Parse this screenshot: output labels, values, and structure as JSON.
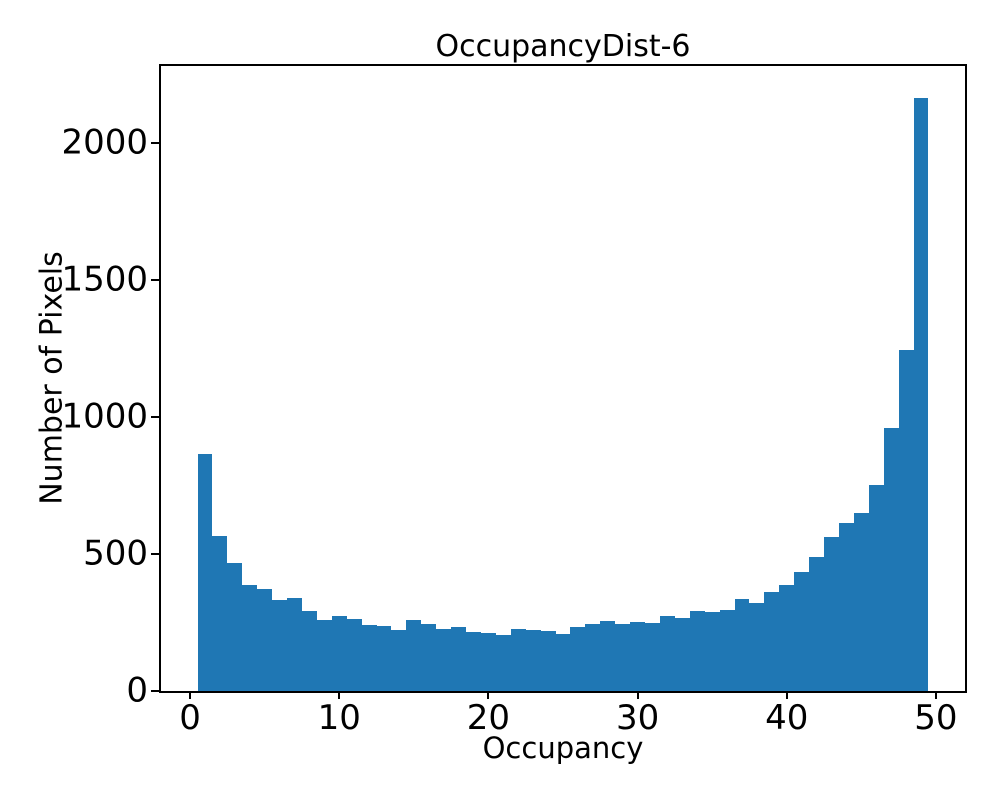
{
  "figure": {
    "background_color": "#ffffff",
    "text_color": "#000000",
    "spine_color": "#000000"
  },
  "chart_data": {
    "type": "bar",
    "subtype": "histogram",
    "title": "OccupancyDist-6",
    "xlabel": "Occupancy",
    "ylabel": "Number of Pixels",
    "bar_color": "#1f77b4",
    "grid": false,
    "legend_position": "none",
    "bin_width": 1,
    "bin_edges_start": 0.5,
    "bin_edges_end": 49.5,
    "xlim": [
      -1.95,
      51.95
    ],
    "ylim": [
      0,
      2280
    ],
    "xticks": [
      0,
      10,
      20,
      30,
      40,
      50
    ],
    "yticks": [
      0,
      500,
      1000,
      1500,
      2000
    ],
    "categories": [
      1,
      2,
      3,
      4,
      5,
      6,
      7,
      8,
      9,
      10,
      11,
      12,
      13,
      14,
      15,
      16,
      17,
      18,
      19,
      20,
      21,
      22,
      23,
      24,
      25,
      26,
      27,
      28,
      29,
      30,
      31,
      32,
      33,
      34,
      35,
      36,
      37,
      38,
      39,
      40,
      41,
      42,
      43,
      44,
      45,
      46,
      47,
      48,
      49
    ],
    "values": [
      865,
      565,
      466,
      388,
      371,
      332,
      340,
      292,
      259,
      274,
      263,
      241,
      236,
      222,
      259,
      245,
      225,
      232,
      215,
      211,
      205,
      226,
      222,
      219,
      207,
      235,
      243,
      256,
      243,
      253,
      249,
      274,
      267,
      293,
      287,
      295,
      334,
      320,
      360,
      385,
      435,
      490,
      563,
      612,
      650,
      750,
      958,
      1245,
      2165
    ]
  }
}
